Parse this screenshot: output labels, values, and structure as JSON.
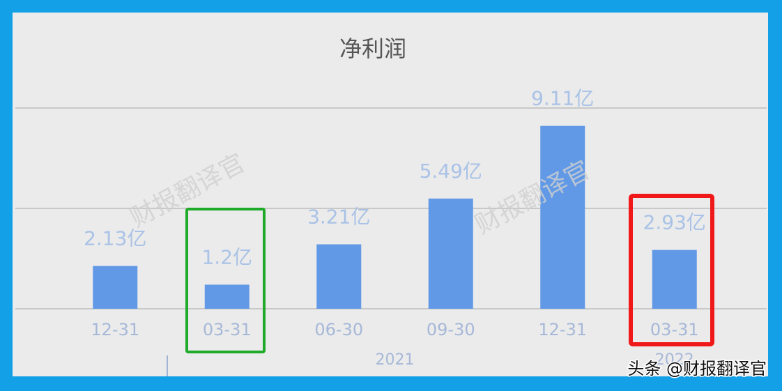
{
  "chart_data": {
    "type": "bar",
    "title": "净利润",
    "categories": [
      "12-31",
      "03-31",
      "06-30",
      "09-30",
      "12-31",
      "03-31"
    ],
    "values": [
      2.13,
      1.2,
      3.21,
      5.49,
      9.11,
      2.93
    ],
    "value_labels": [
      "2.13亿",
      "1.2亿",
      "3.21亿",
      "5.49亿",
      "9.11亿",
      "2.93亿"
    ],
    "color": "#6199e6",
    "ylim": [
      0,
      10
    ],
    "grid_values": [
      0,
      5,
      10
    ],
    "grid": true,
    "x_groups": [
      {
        "label": "2021",
        "categories": [
          1,
          4
        ]
      },
      {
        "label": "2022",
        "categories": [
          5,
          5
        ]
      }
    ],
    "watermark": "财报翻译官",
    "credit": "头条 @财报翻译官"
  }
}
